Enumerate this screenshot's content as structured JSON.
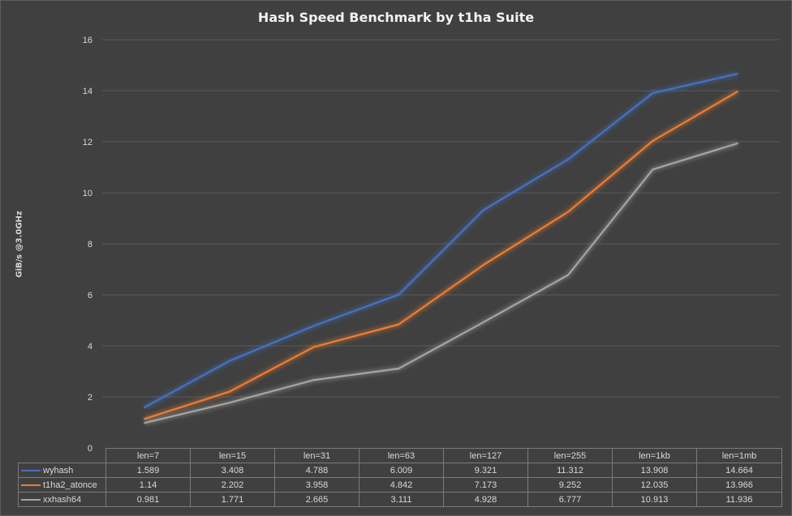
{
  "chart_data": {
    "type": "line",
    "title": "Hash Speed Benchmark by t1ha Suite",
    "ylabel": "GiB/s @3.0GHz",
    "xlabel": "",
    "ylim": [
      0,
      16
    ],
    "yticks": [
      "0",
      "2",
      "4",
      "6",
      "8",
      "10",
      "12",
      "14",
      "16"
    ],
    "grid": true,
    "legend": "data-table",
    "categories": [
      "len=7",
      "len=15",
      "len=31",
      "len=63",
      "len=127",
      "len=255",
      "len=1kb",
      "len=1mb"
    ],
    "series": [
      {
        "name": "wyhash",
        "color": "#4472c4",
        "values": [
          1.589,
          3.408,
          4.788,
          6.009,
          9.321,
          11.312,
          13.908,
          14.664
        ],
        "labels": [
          "1.589",
          "3.408",
          "4.788",
          "6.009",
          "9.321",
          "11.312",
          "13.908",
          "14.664"
        ]
      },
      {
        "name": "t1ha2_atonce",
        "color": "#ed7d31",
        "values": [
          1.14,
          2.202,
          3.958,
          4.842,
          7.173,
          9.252,
          12.035,
          13.966
        ],
        "labels": [
          "1.14",
          "2.202",
          "3.958",
          "4.842",
          "7.173",
          "9.252",
          "12.035",
          "13.966"
        ]
      },
      {
        "name": "xxhash64",
        "color": "#a5a5a5",
        "values": [
          0.981,
          1.771,
          2.665,
          3.111,
          4.928,
          6.777,
          10.913,
          11.936
        ],
        "labels": [
          "0.981",
          "1.771",
          "2.665",
          "3.111",
          "4.928",
          "6.777",
          "10.913",
          "11.936"
        ]
      }
    ]
  }
}
